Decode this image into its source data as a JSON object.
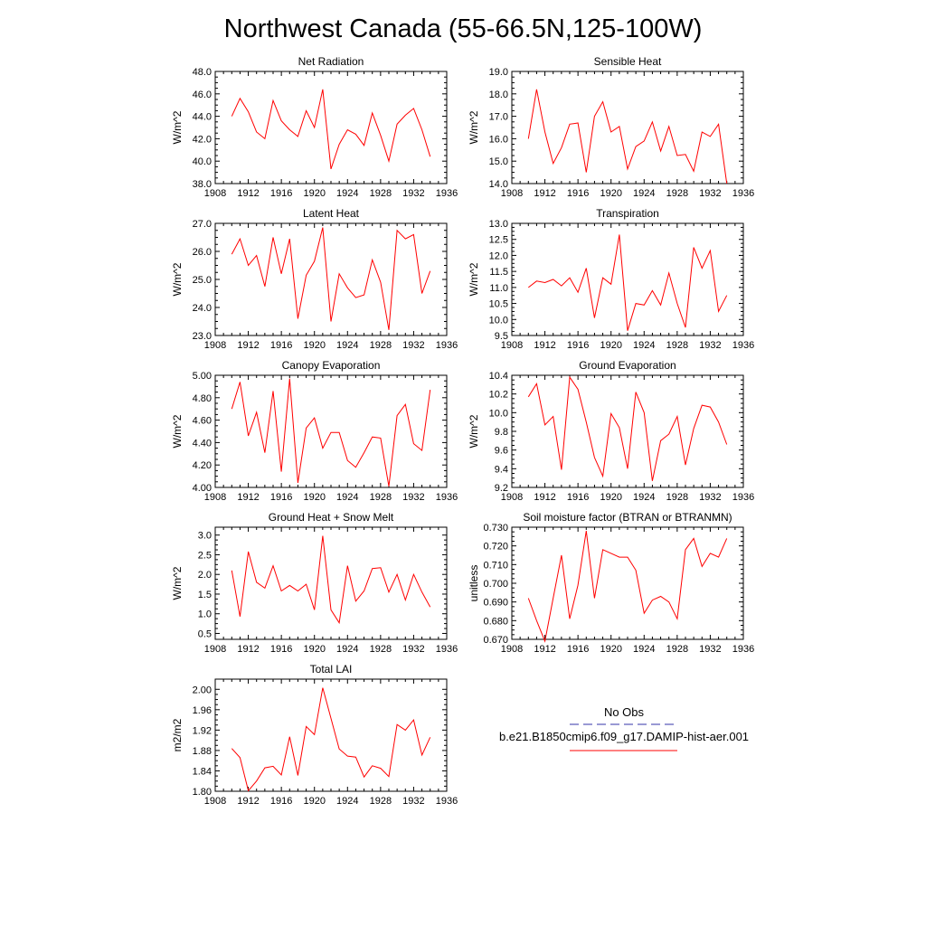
{
  "figure": {
    "title": "Northwest Canada (55-66.5N,125-100W)"
  },
  "legend": {
    "obs_label": "No Obs",
    "obs_color": "#3333aa",
    "model_label": "b.e21.B1850cmip6.f09_g17.DAMIP-hist-aer.001",
    "model_color": "#ff0000"
  },
  "chart_data": [
    {
      "type": "line",
      "title": "Net Radiation",
      "ylabel": "W/m^2",
      "xlim": [
        1908,
        1936
      ],
      "ylim": [
        38.0,
        48.0
      ],
      "xticks": [
        1908,
        1912,
        1916,
        1920,
        1924,
        1928,
        1932,
        1936
      ],
      "yticks": [
        38.0,
        40.0,
        42.0,
        44.0,
        46.0,
        48.0
      ],
      "ytick_labels": [
        "38.0",
        "40.0",
        "42.0",
        "44.0",
        "46.0",
        "48.0"
      ],
      "x": [
        1910,
        1911,
        1912,
        1913,
        1914,
        1915,
        1916,
        1917,
        1918,
        1919,
        1920,
        1921,
        1922,
        1923,
        1924,
        1925,
        1926,
        1927,
        1928,
        1929,
        1930,
        1931,
        1932,
        1933,
        1934
      ],
      "series": [
        {
          "color": "#ff0000",
          "values": [
            44.0,
            45.6,
            44.4,
            42.6,
            42.0,
            45.4,
            43.6,
            42.8,
            42.2,
            44.5,
            43.0,
            46.4,
            39.3,
            41.5,
            42.8,
            42.4,
            41.4,
            44.3,
            42.3,
            40.0,
            43.3,
            44.1,
            44.7,
            42.8,
            40.4
          ]
        }
      ]
    },
    {
      "type": "line",
      "title": "Sensible Heat",
      "ylabel": "W/m^2",
      "xlim": [
        1908,
        1936
      ],
      "ylim": [
        14.0,
        19.0
      ],
      "xticks": [
        1908,
        1912,
        1916,
        1920,
        1924,
        1928,
        1932,
        1936
      ],
      "yticks": [
        14.0,
        15.0,
        16.0,
        17.0,
        18.0,
        19.0
      ],
      "ytick_labels": [
        "14.0",
        "15.0",
        "16.0",
        "17.0",
        "18.0",
        "19.0"
      ],
      "x": [
        1910,
        1911,
        1912,
        1913,
        1914,
        1915,
        1916,
        1917,
        1918,
        1919,
        1920,
        1921,
        1922,
        1923,
        1924,
        1925,
        1926,
        1927,
        1928,
        1929,
        1930,
        1931,
        1932,
        1933,
        1934
      ],
      "series": [
        {
          "color": "#ff0000",
          "values": [
            16.0,
            18.2,
            16.3,
            14.9,
            15.6,
            16.65,
            16.7,
            14.5,
            17.0,
            17.65,
            16.3,
            16.55,
            14.65,
            15.65,
            15.9,
            16.75,
            15.45,
            16.55,
            15.25,
            15.3,
            14.55,
            16.3,
            16.1,
            16.65,
            14.0
          ]
        }
      ]
    },
    {
      "type": "line",
      "title": "Latent Heat",
      "ylabel": "W/m^2",
      "xlim": [
        1908,
        1936
      ],
      "ylim": [
        23.0,
        27.0
      ],
      "xticks": [
        1908,
        1912,
        1916,
        1920,
        1924,
        1928,
        1932,
        1936
      ],
      "yticks": [
        23.0,
        24.0,
        25.0,
        26.0,
        27.0
      ],
      "ytick_labels": [
        "23.0",
        "24.0",
        "25.0",
        "26.0",
        "27.0"
      ],
      "x": [
        1910,
        1911,
        1912,
        1913,
        1914,
        1915,
        1916,
        1917,
        1918,
        1919,
        1920,
        1921,
        1922,
        1923,
        1924,
        1925,
        1926,
        1927,
        1928,
        1929,
        1930,
        1931,
        1932,
        1933,
        1934
      ],
      "series": [
        {
          "color": "#ff0000",
          "values": [
            25.9,
            26.45,
            25.5,
            25.85,
            24.75,
            26.5,
            25.2,
            26.45,
            23.6,
            25.15,
            25.65,
            26.85,
            23.5,
            25.2,
            24.7,
            24.35,
            24.45,
            25.7,
            24.9,
            23.2,
            26.75,
            26.45,
            26.6,
            24.5,
            25.3
          ]
        }
      ]
    },
    {
      "type": "line",
      "title": "Transpiration",
      "ylabel": "W/m^2",
      "xlim": [
        1908,
        1936
      ],
      "ylim": [
        9.5,
        13.0
      ],
      "xticks": [
        1908,
        1912,
        1916,
        1920,
        1924,
        1928,
        1932,
        1936
      ],
      "yticks": [
        9.5,
        10.0,
        10.5,
        11.0,
        11.5,
        12.0,
        12.5,
        13.0
      ],
      "ytick_labels": [
        "9.5",
        "10.0",
        "10.5",
        "11.0",
        "11.5",
        "12.0",
        "12.5",
        "13.0"
      ],
      "x": [
        1910,
        1911,
        1912,
        1913,
        1914,
        1915,
        1916,
        1917,
        1918,
        1919,
        1920,
        1921,
        1922,
        1923,
        1924,
        1925,
        1926,
        1927,
        1928,
        1929,
        1930,
        1931,
        1932,
        1933,
        1934
      ],
      "series": [
        {
          "color": "#ff0000",
          "values": [
            11.0,
            11.2,
            11.15,
            11.25,
            11.05,
            11.3,
            10.85,
            11.6,
            10.05,
            11.3,
            11.1,
            12.65,
            9.65,
            10.5,
            10.45,
            10.9,
            10.45,
            11.45,
            10.5,
            9.75,
            12.25,
            11.6,
            12.15,
            10.25,
            10.75
          ]
        }
      ]
    },
    {
      "type": "line",
      "title": "Canopy Evaporation",
      "ylabel": "W/m^2",
      "xlim": [
        1908,
        1936
      ],
      "ylim": [
        4.0,
        5.0
      ],
      "xticks": [
        1908,
        1912,
        1916,
        1920,
        1924,
        1928,
        1932,
        1936
      ],
      "yticks": [
        4.0,
        4.2,
        4.4,
        4.6,
        4.8,
        5.0
      ],
      "ytick_labels": [
        "4.00",
        "4.20",
        "4.40",
        "4.60",
        "4.80",
        "5.00"
      ],
      "x": [
        1910,
        1911,
        1912,
        1913,
        1914,
        1915,
        1916,
        1917,
        1918,
        1919,
        1920,
        1921,
        1922,
        1923,
        1924,
        1925,
        1926,
        1927,
        1928,
        1929,
        1930,
        1931,
        1932,
        1933,
        1934
      ],
      "series": [
        {
          "color": "#ff0000",
          "values": [
            4.7,
            4.94,
            4.46,
            4.67,
            4.31,
            4.86,
            4.14,
            4.97,
            4.04,
            4.53,
            4.62,
            4.35,
            4.49,
            4.49,
            4.24,
            4.18,
            4.31,
            4.45,
            4.44,
            4.01,
            4.64,
            4.74,
            4.39,
            4.33,
            4.87
          ]
        }
      ]
    },
    {
      "type": "line",
      "title": "Ground Evaporation",
      "ylabel": "W/m^2",
      "xlim": [
        1908,
        1936
      ],
      "ylim": [
        9.2,
        10.4
      ],
      "xticks": [
        1908,
        1912,
        1916,
        1920,
        1924,
        1928,
        1932,
        1936
      ],
      "yticks": [
        9.2,
        9.4,
        9.6,
        9.8,
        10.0,
        10.2,
        10.4
      ],
      "ytick_labels": [
        "9.2",
        "9.4",
        "9.6",
        "9.8",
        "10.0",
        "10.2",
        "10.4"
      ],
      "x": [
        1910,
        1911,
        1912,
        1913,
        1914,
        1915,
        1916,
        1917,
        1918,
        1919,
        1920,
        1921,
        1922,
        1923,
        1924,
        1925,
        1926,
        1927,
        1928,
        1929,
        1930,
        1931,
        1932,
        1933,
        1934
      ],
      "series": [
        {
          "color": "#ff0000",
          "values": [
            10.17,
            10.31,
            9.87,
            9.96,
            9.39,
            10.38,
            10.25,
            9.9,
            9.52,
            9.32,
            9.99,
            9.84,
            9.4,
            10.22,
            10.0,
            9.27,
            9.7,
            9.77,
            9.96,
            9.44,
            9.83,
            10.08,
            10.06,
            9.9,
            9.66
          ]
        }
      ]
    },
    {
      "type": "line",
      "title": "Ground Heat + Snow Melt",
      "ylabel": "W/m^2",
      "xlim": [
        1908,
        1936
      ],
      "ylim": [
        0.35,
        3.2
      ],
      "xticks": [
        1908,
        1912,
        1916,
        1920,
        1924,
        1928,
        1932,
        1936
      ],
      "yticks": [
        0.5,
        1.0,
        1.5,
        2.0,
        2.5,
        3.0
      ],
      "ytick_labels": [
        "0.5",
        "1.0",
        "1.5",
        "2.0",
        "2.5",
        "3.0"
      ],
      "x": [
        1910,
        1911,
        1912,
        1913,
        1914,
        1915,
        1916,
        1917,
        1918,
        1919,
        1920,
        1921,
        1922,
        1923,
        1924,
        1925,
        1926,
        1927,
        1928,
        1929,
        1930,
        1931,
        1932,
        1933,
        1934
      ],
      "series": [
        {
          "color": "#ff0000",
          "values": [
            2.1,
            0.93,
            2.58,
            1.8,
            1.65,
            2.22,
            1.58,
            1.72,
            1.58,
            1.75,
            1.1,
            2.98,
            1.1,
            0.77,
            2.22,
            1.32,
            1.58,
            2.15,
            2.17,
            1.55,
            2.0,
            1.35,
            2.0,
            1.55,
            1.17
          ]
        }
      ]
    },
    {
      "type": "line",
      "title": "Soil moisture factor (BTRAN or BTRANMN)",
      "ylabel": "unitless",
      "xlim": [
        1908,
        1936
      ],
      "ylim": [
        0.67,
        0.73
      ],
      "xticks": [
        1908,
        1912,
        1916,
        1920,
        1924,
        1928,
        1932,
        1936
      ],
      "yticks": [
        0.67,
        0.68,
        0.69,
        0.7,
        0.71,
        0.72,
        0.73
      ],
      "ytick_labels": [
        "0.670",
        "0.680",
        "0.690",
        "0.700",
        "0.710",
        "0.720",
        "0.730"
      ],
      "x": [
        1910,
        1911,
        1912,
        1913,
        1914,
        1915,
        1916,
        1917,
        1918,
        1919,
        1920,
        1921,
        1922,
        1923,
        1924,
        1925,
        1926,
        1927,
        1928,
        1929,
        1930,
        1931,
        1932,
        1933,
        1934
      ],
      "series": [
        {
          "color": "#ff0000",
          "values": [
            0.692,
            0.68,
            0.669,
            0.692,
            0.715,
            0.681,
            0.699,
            0.728,
            0.692,
            0.718,
            0.716,
            0.714,
            0.714,
            0.707,
            0.684,
            0.691,
            0.693,
            0.69,
            0.681,
            0.718,
            0.724,
            0.709,
            0.716,
            0.714,
            0.724
          ]
        }
      ]
    },
    {
      "type": "line",
      "title": "Total LAI",
      "ylabel": "m2/m2",
      "xlim": [
        1908,
        1936
      ],
      "ylim": [
        1.8,
        2.02
      ],
      "xticks": [
        1908,
        1912,
        1916,
        1920,
        1924,
        1928,
        1932,
        1936
      ],
      "yticks": [
        1.8,
        1.84,
        1.88,
        1.92,
        1.96,
        2.0
      ],
      "ytick_labels": [
        "1.80",
        "1.84",
        "1.88",
        "1.92",
        "1.96",
        "2.00"
      ],
      "x": [
        1910,
        1911,
        1912,
        1913,
        1914,
        1915,
        1916,
        1917,
        1918,
        1919,
        1920,
        1921,
        1922,
        1923,
        1924,
        1925,
        1926,
        1927,
        1928,
        1929,
        1930,
        1931,
        1932,
        1933,
        1934
      ],
      "series": [
        {
          "color": "#ff0000",
          "values": [
            1.884,
            1.866,
            1.801,
            1.82,
            1.846,
            1.849,
            1.832,
            1.907,
            1.831,
            1.927,
            1.911,
            2.003,
            1.943,
            1.883,
            1.869,
            1.867,
            1.828,
            1.85,
            1.845,
            1.829,
            1.931,
            1.92,
            1.94,
            1.871,
            1.906
          ]
        }
      ]
    }
  ]
}
